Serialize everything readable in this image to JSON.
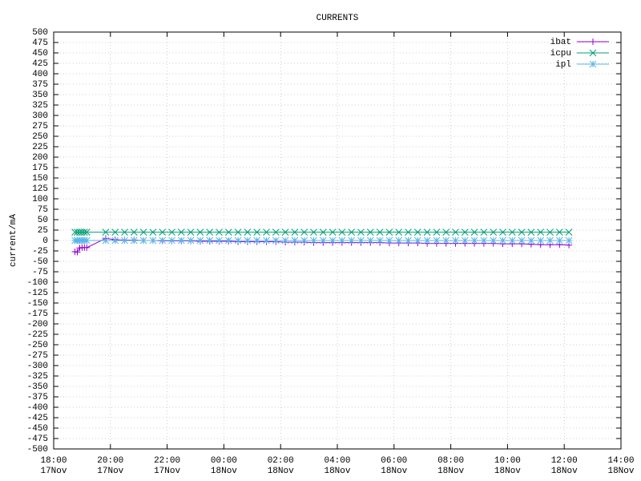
{
  "chart_data": {
    "type": "line",
    "title": "CURRENTS",
    "y_label": "current/mA",
    "x": [
      "17Nov 18:45",
      "17Nov 18:50",
      "17Nov 18:55",
      "17Nov 19:00",
      "17Nov 19:05",
      "17Nov 19:10",
      "17Nov 19:50",
      "17Nov 20:10",
      "17Nov 20:30",
      "17Nov 20:50",
      "17Nov 21:10",
      "17Nov 21:30",
      "17Nov 21:50",
      "17Nov 22:10",
      "17Nov 22:30",
      "17Nov 22:50",
      "17Nov 23:10",
      "17Nov 23:30",
      "17Nov 23:50",
      "18Nov 00:10",
      "18Nov 00:30",
      "18Nov 00:50",
      "18Nov 01:10",
      "18Nov 01:30",
      "18Nov 01:50",
      "18Nov 02:10",
      "18Nov 02:30",
      "18Nov 02:50",
      "18Nov 03:10",
      "18Nov 03:30",
      "18Nov 03:50",
      "18Nov 04:10",
      "18Nov 04:30",
      "18Nov 04:50",
      "18Nov 05:10",
      "18Nov 05:30",
      "18Nov 05:50",
      "18Nov 06:10",
      "18Nov 06:30",
      "18Nov 06:50",
      "18Nov 07:10",
      "18Nov 07:30",
      "18Nov 07:50",
      "18Nov 08:10",
      "18Nov 08:30",
      "18Nov 08:50",
      "18Nov 09:10",
      "18Nov 09:30",
      "18Nov 09:50",
      "18Nov 10:10",
      "18Nov 10:30",
      "18Nov 10:50",
      "18Nov 11:10",
      "18Nov 11:30",
      "18Nov 11:50",
      "18Nov 12:10"
    ],
    "series": [
      {
        "name": "ibat",
        "color": "#9400d3",
        "marker": "plus",
        "values": [
          -27,
          -28,
          -18,
          -17,
          -17,
          -17,
          5,
          2,
          1,
          1,
          0,
          0,
          -1,
          -1,
          -1,
          -1,
          -2,
          -2,
          -2,
          -2,
          -3,
          -3,
          -3,
          -3,
          -3,
          -4,
          -4,
          -4,
          -5,
          -5,
          -5,
          -5,
          -5,
          -5,
          -5,
          -5,
          -6,
          -6,
          -6,
          -6,
          -7,
          -7,
          -7,
          -7,
          -7,
          -7,
          -7,
          -7,
          -8,
          -8,
          -8,
          -9,
          -10,
          -10,
          -10,
          -11
        ]
      },
      {
        "name": "icpu",
        "color": "#009e73",
        "marker": "cross",
        "values": [
          20,
          20,
          20,
          20,
          20,
          20,
          20,
          20,
          20,
          20,
          20,
          20,
          20,
          20,
          20,
          20,
          20,
          20,
          20,
          20,
          20,
          20,
          20,
          20,
          20,
          20,
          20,
          20,
          20,
          20,
          20,
          20,
          20,
          20,
          20,
          20,
          20,
          20,
          20,
          20,
          20,
          20,
          20,
          20,
          20,
          20,
          20,
          20,
          20,
          20,
          20,
          20,
          20,
          20,
          20,
          20
        ]
      },
      {
        "name": "ipl",
        "color": "#56b4e9",
        "marker": "star",
        "values": [
          0,
          0,
          0,
          0,
          0,
          0,
          0,
          0,
          0,
          0,
          0,
          0,
          0,
          0,
          0,
          0,
          0,
          0,
          0,
          0,
          0,
          0,
          0,
          0,
          0,
          0,
          0,
          0,
          0,
          0,
          0,
          0,
          0,
          0,
          0,
          0,
          0,
          0,
          0,
          0,
          0,
          0,
          0,
          0,
          0,
          0,
          0,
          0,
          0,
          0,
          0,
          0,
          0,
          0,
          0,
          0
        ]
      }
    ],
    "xlim": [
      "17Nov 18:00",
      "18Nov 14:00"
    ],
    "xticks": [
      {
        "value": "17Nov 18:00",
        "label": [
          "18:00",
          "17Nov"
        ]
      },
      {
        "value": "17Nov 20:00",
        "label": [
          "20:00",
          "17Nov"
        ]
      },
      {
        "value": "17Nov 22:00",
        "label": [
          "22:00",
          "17Nov"
        ]
      },
      {
        "value": "18Nov 00:00",
        "label": [
          "00:00",
          "18Nov"
        ]
      },
      {
        "value": "18Nov 02:00",
        "label": [
          "02:00",
          "18Nov"
        ]
      },
      {
        "value": "18Nov 04:00",
        "label": [
          "04:00",
          "18Nov"
        ]
      },
      {
        "value": "18Nov 06:00",
        "label": [
          "06:00",
          "18Nov"
        ]
      },
      {
        "value": "18Nov 08:00",
        "label": [
          "08:00",
          "18Nov"
        ]
      },
      {
        "value": "18Nov 10:00",
        "label": [
          "10:00",
          "18Nov"
        ]
      },
      {
        "value": "18Nov 12:00",
        "label": [
          "12:00",
          "18Nov"
        ]
      },
      {
        "value": "18Nov 14:00",
        "label": [
          "14:00",
          "18Nov"
        ]
      }
    ],
    "ylim": [
      -500,
      500
    ],
    "yticks": [
      -500,
      -475,
      -450,
      -425,
      -400,
      -375,
      -350,
      -325,
      -300,
      -275,
      -250,
      -225,
      -200,
      -175,
      -150,
      -125,
      -100,
      -75,
      -50,
      -25,
      0,
      25,
      50,
      75,
      100,
      125,
      150,
      175,
      200,
      225,
      250,
      275,
      300,
      325,
      350,
      375,
      400,
      425,
      450,
      475,
      500
    ],
    "grid": true,
    "legend": "top-right"
  }
}
